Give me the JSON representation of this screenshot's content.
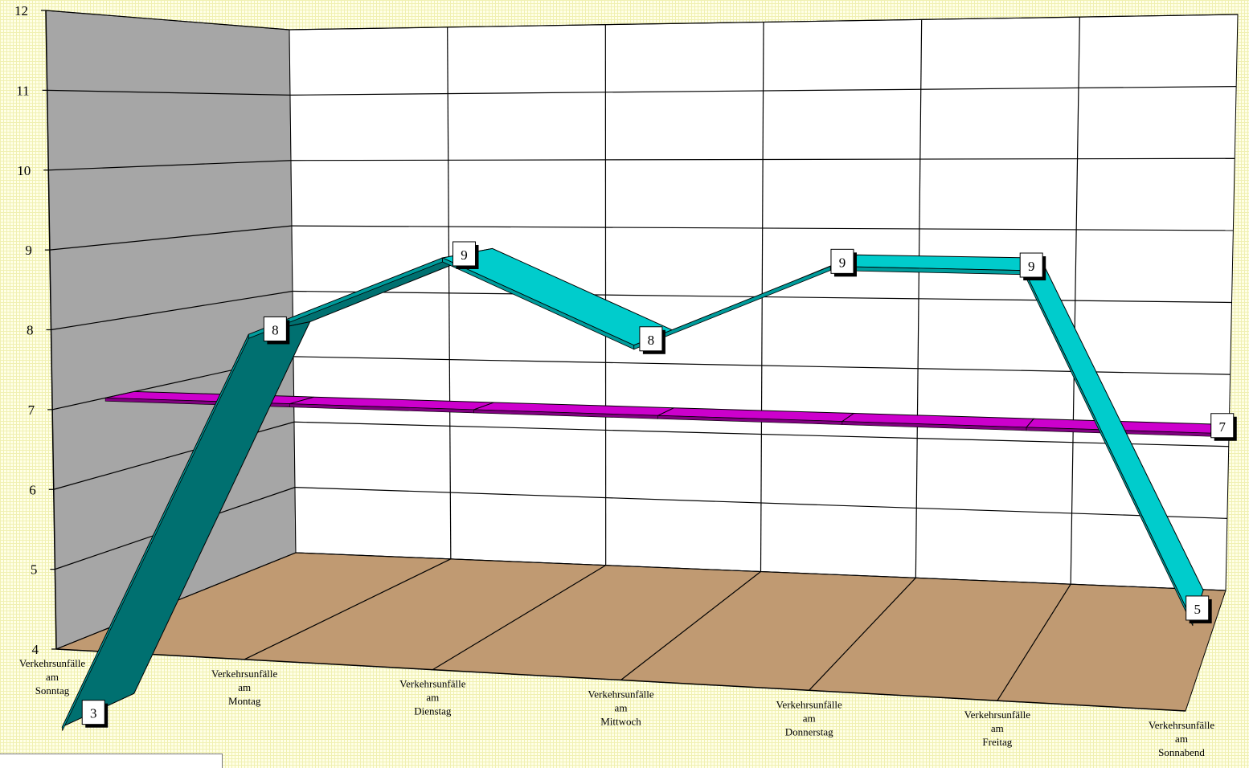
{
  "chart_data": {
    "type": "line",
    "style": "3d-ribbon",
    "categories": [
      [
        "Verkehrsunfälle",
        "am",
        "Sonntag"
      ],
      [
        "Verkehrsunfälle",
        "am",
        "Montag"
      ],
      [
        "Verkehrsunfälle",
        "am",
        "Dienstag"
      ],
      [
        "Verkehrsunfälle",
        "am",
        "Mittwoch"
      ],
      [
        "Verkehrsunfälle",
        "am",
        "Donnerstag"
      ],
      [
        "Verkehrsunfälle",
        "am",
        "Freitag"
      ],
      [
        "Verkehrsunfälle",
        "am",
        "Sonnabend"
      ]
    ],
    "series": [
      {
        "values": [
          3,
          8,
          9,
          8,
          9,
          9,
          5
        ],
        "color": "#00cccc",
        "shade_color": "#007070",
        "show_labels": true
      },
      {
        "values": [
          7,
          7,
          7,
          7,
          7,
          7,
          7
        ],
        "color": "#cc00cc",
        "show_labels": "last"
      }
    ],
    "ylim": [
      4,
      12
    ],
    "yticks": [
      4,
      5,
      6,
      7,
      8,
      9,
      10,
      11,
      12
    ],
    "grid": true,
    "walls": {
      "side": "#a6a6a6",
      "back": "#ffffff",
      "floor": "#c09a72"
    }
  }
}
